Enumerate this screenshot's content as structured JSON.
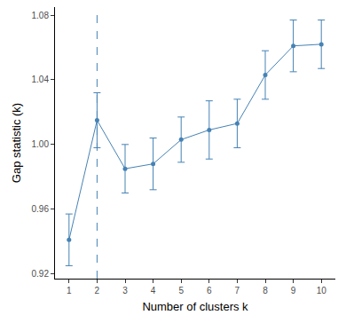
{
  "chart_data": {
    "type": "line",
    "x_label": "Number of clusters k",
    "y_label": "Gap statistic (k)",
    "x": [
      1,
      2,
      3,
      4,
      5,
      6,
      7,
      8,
      9,
      10
    ],
    "values": [
      0.941,
      1.015,
      0.985,
      0.988,
      1.003,
      1.009,
      1.013,
      1.043,
      1.061,
      1.062
    ],
    "errors": [
      0.016,
      0.017,
      0.015,
      0.016,
      0.014,
      0.018,
      0.015,
      0.015,
      0.016,
      0.015
    ],
    "optimal_k": 2,
    "color": "#4682b4",
    "marker": "circle",
    "line_style": "solid",
    "xlim": [
      0.5,
      10.5
    ],
    "xticks": [
      1,
      2,
      3,
      4,
      5,
      6,
      7,
      8,
      9,
      10
    ],
    "ylim": [
      0.917,
      1.085
    ],
    "yticks": [
      0.92,
      0.96,
      {
        "value": 1,
        "label": "1.00"
      },
      1.04,
      1.08
    ],
    "grid": false
  }
}
